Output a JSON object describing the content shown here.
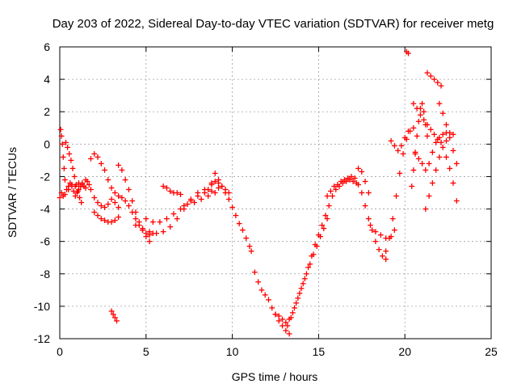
{
  "chart_data": {
    "type": "scatter",
    "title": "Day 203 of 2022, Sidereal Day-to-day VTEC variation (SDTVAR) for receiver metg",
    "xlabel": "GPS time / hours",
    "ylabel": "SDTVAR / TECUs",
    "xlim": [
      0,
      25
    ],
    "ylim": [
      -12,
      6
    ],
    "xticks": [
      0,
      5,
      10,
      15,
      20,
      25
    ],
    "yticks": [
      -12,
      -10,
      -8,
      -6,
      -4,
      -2,
      0,
      2,
      4,
      6
    ],
    "grid": true,
    "marker": "plus",
    "color": "#ff0000",
    "series": [
      {
        "x": [
          0.05,
          0.1,
          0.15,
          0.2,
          0.25,
          0.3,
          0.4,
          0.5,
          0.6,
          0.7,
          0.8,
          0.9,
          1.0,
          1.1,
          1.2,
          1.3,
          1.4,
          1.5
        ],
        "y": [
          0.9,
          0.5,
          0.0,
          -0.8,
          -1.5,
          -2.2,
          -2.8,
          -2.6,
          -2.4,
          -2.6,
          -2.9,
          -3.2,
          -3.0,
          -2.8,
          -2.6,
          -2.4,
          -2.6,
          -2.7
        ]
      },
      {
        "x": [
          0.0,
          0.1,
          0.2,
          0.3,
          0.5,
          0.7,
          0.9,
          1.1,
          1.3,
          1.5,
          1.7
        ],
        "y": [
          -3.3,
          -3.0,
          -3.2,
          -3.1,
          -2.8,
          -2.5,
          -2.6,
          -2.4,
          -2.5,
          -2.2,
          -2.5
        ]
      },
      {
        "x": [
          0.35,
          0.45,
          0.55,
          0.65,
          0.75,
          0.85,
          0.95,
          1.05,
          1.15,
          1.25
        ],
        "y": [
          0.1,
          -0.2,
          -0.6,
          -1.0,
          -1.5,
          -2.0,
          -2.5,
          -2.9,
          -3.3,
          -3.6
        ]
      },
      {
        "x": [
          1.8,
          2.0,
          2.2,
          2.4,
          2.6,
          2.8,
          3.0,
          3.2,
          3.4,
          3.6,
          3.8,
          4.0,
          4.2,
          4.4,
          4.6,
          4.8,
          5.0,
          5.2,
          5.4
        ],
        "y": [
          -0.9,
          -0.6,
          -0.8,
          -1.2,
          -1.6,
          -2.2,
          -2.7,
          -3.0,
          -3.2,
          -3.3,
          -3.5,
          -3.8,
          -4.2,
          -4.6,
          -5.0,
          -5.3,
          -5.5,
          -5.6,
          -5.5
        ]
      },
      {
        "x": [
          1.6,
          1.8,
          2.0,
          2.2,
          2.4,
          2.6,
          2.8,
          3.0,
          3.2,
          3.4
        ],
        "y": [
          -2.3,
          -2.8,
          -3.3,
          -3.6,
          -3.8,
          -3.9,
          -3.7,
          -3.4,
          -3.6,
          -3.9
        ]
      },
      {
        "x": [
          2.0,
          2.2,
          2.4,
          2.6,
          2.8,
          3.0,
          3.2,
          3.4
        ],
        "y": [
          -4.2,
          -4.4,
          -4.6,
          -4.7,
          -4.8,
          -4.8,
          -4.7,
          -4.5
        ]
      },
      {
        "x": [
          3.4,
          3.6,
          3.8,
          4.0,
          4.2,
          4.4,
          4.6,
          4.8,
          5.0,
          5.2
        ],
        "y": [
          -1.3,
          -1.6,
          -2.2,
          -2.8,
          -3.5,
          -4.2,
          -4.8,
          -5.3,
          -5.7,
          -6.0
        ]
      },
      {
        "x": [
          3.0,
          3.1,
          3.2,
          3.3
        ],
        "y": [
          -10.3,
          -10.5,
          -10.7,
          -10.9
        ]
      },
      {
        "x": [
          4.4,
          4.8,
          5.2,
          5.6,
          6.0,
          6.4,
          6.8,
          7.2,
          7.6,
          8.0,
          8.4,
          8.8,
          9.2
        ],
        "y": [
          -5.0,
          -5.2,
          -5.4,
          -5.5,
          -5.4,
          -5.1,
          -4.6,
          -4.0,
          -3.5,
          -3.2,
          -3.0,
          -2.9,
          -2.7
        ]
      },
      {
        "x": [
          5.0,
          5.4,
          5.8,
          6.2,
          6.6,
          7.0,
          7.4,
          7.8,
          8.2,
          8.6,
          9.0
        ],
        "y": [
          -4.6,
          -4.8,
          -4.8,
          -4.6,
          -4.3,
          -4.0,
          -3.7,
          -3.6,
          -3.4,
          -3.2,
          -3.0
        ]
      },
      {
        "x": [
          6.0,
          6.2,
          6.4,
          6.6,
          6.8,
          7.0
        ],
        "y": [
          -2.6,
          -2.7,
          -2.9,
          -3.0,
          -3.0,
          -3.1
        ]
      },
      {
        "x": [
          7.2,
          7.6,
          8.0,
          8.4,
          8.8,
          9.0,
          9.2,
          9.4,
          9.6,
          9.8,
          10.0,
          10.2,
          10.4,
          10.6,
          10.8,
          11.0,
          11.1
        ],
        "y": [
          -3.8,
          -3.4,
          -3.0,
          -2.8,
          -2.4,
          -1.8,
          -2.2,
          -2.6,
          -3.0,
          -3.4,
          -3.9,
          -4.4,
          -4.9,
          -5.3,
          -5.8,
          -6.3,
          -6.6
        ]
      },
      {
        "x": [
          8.6,
          8.8,
          9.0,
          9.2,
          9.4,
          9.6,
          9.8
        ],
        "y": [
          -2.8,
          -2.5,
          -2.3,
          -2.4,
          -2.6,
          -2.8,
          -3.0
        ]
      },
      {
        "x": [
          11.3,
          11.5,
          11.7,
          11.9,
          12.1,
          12.3,
          12.5,
          12.7,
          12.9,
          13.1,
          13.3
        ],
        "y": [
          -7.9,
          -8.5,
          -9.0,
          -9.3,
          -9.6,
          -10.1,
          -10.5,
          -10.9,
          -11.2,
          -11.5,
          -11.7
        ]
      },
      {
        "x": [
          12.5,
          12.7,
          12.9,
          13.1,
          13.3,
          13.5,
          13.7,
          13.9,
          14.1,
          14.3,
          14.5,
          14.7,
          14.9,
          15.1,
          15.3,
          15.5
        ],
        "y": [
          -10.5,
          -10.6,
          -10.8,
          -11.0,
          -10.8,
          -10.4,
          -9.8,
          -9.2,
          -8.6,
          -8.0,
          -7.4,
          -6.8,
          -6.3,
          -5.7,
          -5.2,
          -4.6
        ]
      },
      {
        "x": [
          13.2,
          13.4,
          13.6,
          13.8,
          14.0,
          14.2,
          14.4,
          14.6,
          14.8,
          15.0,
          15.2,
          15.4,
          15.6,
          15.8,
          16.0,
          16.2,
          16.4,
          16.6,
          16.8,
          17.0,
          17.2
        ],
        "y": [
          -11.2,
          -10.7,
          -10.1,
          -9.5,
          -8.9,
          -8.3,
          -7.6,
          -6.9,
          -6.2,
          -5.6,
          -5.0,
          -4.4,
          -3.8,
          -3.2,
          -2.8,
          -2.6,
          -2.4,
          -2.3,
          -2.2,
          -2.3,
          -2.4
        ]
      },
      {
        "x": [
          15.5,
          15.7,
          15.9,
          16.1,
          16.3,
          16.5,
          16.7,
          16.9,
          17.1,
          17.3,
          17.5,
          17.7,
          17.9,
          18.1,
          18.3,
          18.5,
          18.7,
          18.9
        ],
        "y": [
          -3.2,
          -2.9,
          -2.6,
          -2.5,
          -2.3,
          -2.2,
          -2.1,
          -2.0,
          -2.1,
          -2.5,
          -3.0,
          -3.8,
          -4.6,
          -5.3,
          -6.0,
          -6.5,
          -6.9,
          -7.1
        ]
      },
      {
        "x": [
          17.3,
          17.5,
          17.7,
          17.9
        ],
        "y": [
          -1.5,
          -1.7,
          -2.3,
          -3.0
        ]
      },
      {
        "x": [
          18.9,
          19.1,
          19.3,
          19.5,
          19.7,
          19.9,
          20.1,
          20.3,
          20.5
        ],
        "y": [
          -6.6,
          -5.8,
          -4.6,
          -3.2,
          -1.8,
          -0.6,
          0.3,
          0.8,
          1.0
        ]
      },
      {
        "x": [
          18.0,
          18.3,
          18.6,
          18.9,
          19.2,
          19.4
        ],
        "y": [
          -5.0,
          -5.4,
          -5.6,
          -5.8,
          -5.7,
          -5.3
        ]
      },
      {
        "x": [
          19.2,
          19.4,
          19.6,
          19.8,
          20.0,
          20.2
        ],
        "y": [
          0.2,
          -0.1,
          -0.4,
          -0.1,
          0.4,
          0.8
        ]
      },
      {
        "x": [
          20.1,
          20.2
        ],
        "y": [
          5.7,
          5.6
        ]
      },
      {
        "x": [
          20.4,
          20.5,
          20.6,
          20.7,
          20.8,
          20.9,
          21.0,
          21.1,
          21.2,
          21.3
        ],
        "y": [
          -2.6,
          -1.6,
          -0.5,
          0.5,
          1.4,
          2.2,
          2.5,
          2.0,
          1.2,
          0.5
        ]
      },
      {
        "x": [
          20.5,
          20.7,
          20.9,
          21.1,
          21.3,
          21.5,
          21.7,
          21.9,
          22.1
        ],
        "y": [
          2.5,
          2.2,
          1.8,
          1.5,
          1.2,
          0.9,
          0.6,
          0.3,
          0.1
        ]
      },
      {
        "x": [
          20.6,
          20.8,
          21.0,
          21.2,
          21.4,
          21.6,
          21.8,
          22.0,
          22.2,
          22.4,
          22.6,
          22.8
        ],
        "y": [
          -0.6,
          -0.9,
          -1.2,
          -1.6,
          -1.2,
          -0.5,
          0.1,
          0.4,
          0.6,
          0.7,
          0.7,
          0.6
        ]
      },
      {
        "x": [
          21.3,
          21.5,
          21.7,
          21.9,
          22.1
        ],
        "y": [
          4.4,
          4.2,
          4.0,
          3.8,
          3.6
        ]
      },
      {
        "x": [
          21.2,
          21.4,
          21.6,
          21.8,
          22.0,
          22.2,
          22.4
        ],
        "y": [
          -4.0,
          -3.2,
          -2.4,
          -1.6,
          -0.8,
          -0.2,
          0.2
        ]
      },
      {
        "x": [
          22.0,
          22.2,
          22.4,
          22.6,
          22.8,
          23.0
        ],
        "y": [
          2.5,
          1.9,
          1.2,
          0.4,
          -0.4,
          -1.2
        ]
      },
      {
        "x": [
          22.4,
          22.6,
          22.8,
          23.0
        ],
        "y": [
          -0.8,
          -1.5,
          -2.4,
          -3.5
        ]
      }
    ]
  }
}
